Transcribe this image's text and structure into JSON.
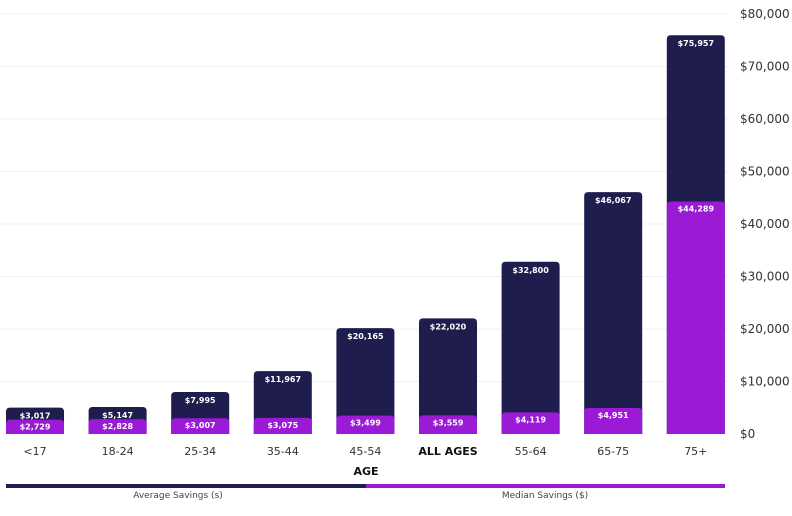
{
  "chart_data": {
    "type": "bar",
    "xlabel": "AGE",
    "ylabel": "",
    "ylim": [
      0,
      80000
    ],
    "yticks": [
      "$0",
      "$10,000",
      "$20,000",
      "$30,000",
      "$40,000",
      "$50,000",
      "$60,000",
      "$70,000",
      "$80,000"
    ],
    "grid": true,
    "legend_placement": "bottom",
    "categories": [
      "<17",
      "18-24",
      "25-34",
      "35-44",
      "45-54",
      "ALL AGES",
      "55-64",
      "65-75",
      "75+"
    ],
    "highlight_category": "ALL AGES",
    "series": [
      {
        "name": "Average Savings (s)",
        "color": "#1f1c4e",
        "values": [
          3017,
          5147,
          7995,
          11967,
          20165,
          22020,
          32800,
          46067,
          75957
        ],
        "labels": [
          "$3,017",
          "$5,147",
          "$7,995",
          "$11,967",
          "$20,165",
          "$22,020",
          "$32,800",
          "$46,067",
          "$75,957"
        ]
      },
      {
        "name": "Median Savings ($)",
        "color": "#9a1ad6",
        "values": [
          2729,
          2828,
          3007,
          3075,
          3499,
          3559,
          4119,
          4951,
          44289
        ],
        "labels": [
          "$2,729",
          "$2,828",
          "$3,007",
          "$3,075",
          "$3,499",
          "$3,559",
          "$4,119",
          "$4,951",
          "$44,289"
        ]
      }
    ]
  }
}
